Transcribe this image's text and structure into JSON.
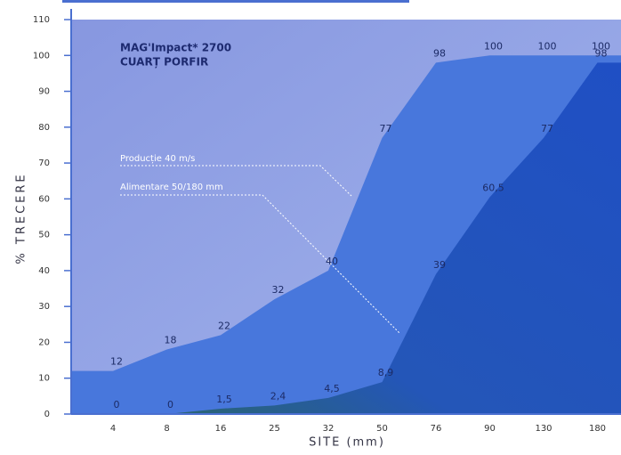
{
  "chart_data": {
    "type": "line",
    "title": "MAG'Impact* 2700",
    "subtitle": "CUARȚ PORFIR",
    "y_label": "% TRECERE",
    "x_label": "SITE (mm)",
    "categories": [
      "4",
      "8",
      "16",
      "25",
      "32",
      "50",
      "76",
      "90",
      "130",
      "180"
    ],
    "series": [
      {
        "name": "Producție 40 m/s",
        "color": "#4877dc",
        "values": [
          12,
          18,
          22,
          32,
          40,
          77,
          98,
          100,
          100,
          100
        ]
      },
      {
        "name": "Alimentare 50/180 mm",
        "color": "#2350c2",
        "values": [
          0,
          0,
          1.5,
          2.4,
          4.5,
          8.9,
          39,
          60.5,
          77,
          98
        ],
        "value_labels": [
          "0",
          "0",
          "1,5",
          "2,4",
          "4,5",
          "8,9",
          "39",
          "60,5",
          "77",
          "98"
        ]
      }
    ],
    "ylim": [
      0,
      110
    ],
    "yticks": [
      0,
      10,
      20,
      30,
      40,
      50,
      60,
      70,
      80,
      90,
      100,
      110
    ]
  }
}
